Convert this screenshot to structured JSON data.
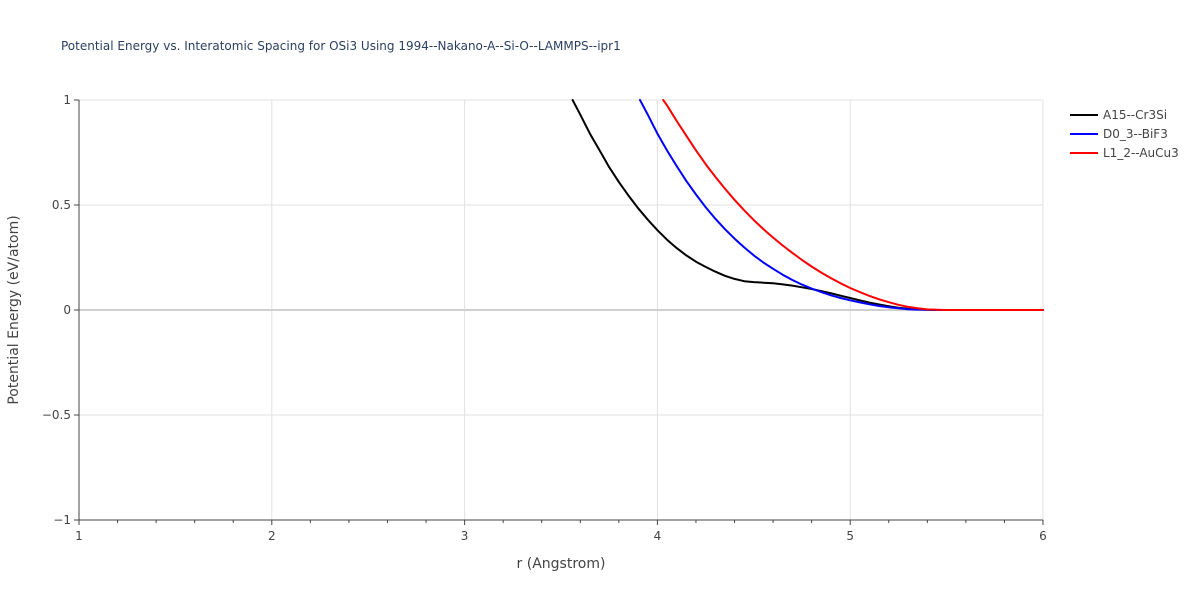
{
  "chart_data": {
    "type": "line",
    "title": "Potential Energy vs. Interatomic Spacing for OSi3 Using 1994--Nakano-A--Si-O--LAMMPS--ipr1",
    "xlabel": "r (Angstrom)",
    "ylabel": "Potential Energy (eV/atom)",
    "xlim": [
      1,
      6
    ],
    "ylim": [
      -1,
      1
    ],
    "xticks": [
      1,
      2,
      3,
      4,
      5,
      6
    ],
    "yticks": [
      -1,
      -0.5,
      0,
      0.5,
      1
    ],
    "xtick_labels": [
      "1",
      "2",
      "3",
      "4",
      "5",
      "6"
    ],
    "ytick_labels": [
      "−1",
      "−0.5",
      "0",
      "0.5",
      "1"
    ],
    "grid": true,
    "legend_position": "right",
    "series": [
      {
        "name": "A15--Cr3Si",
        "color": "#000000",
        "x": [
          3.56,
          3.6,
          3.65,
          3.7,
          3.75,
          3.8,
          3.85,
          3.9,
          3.95,
          4.0,
          4.05,
          4.1,
          4.15,
          4.2,
          4.25,
          4.3,
          4.35,
          4.4,
          4.45,
          4.5,
          4.55,
          4.6,
          4.65,
          4.7,
          4.75,
          4.8,
          4.85,
          4.9,
          4.95,
          5.0,
          5.05,
          5.1,
          5.15,
          5.2,
          5.25,
          5.3,
          5.35,
          5.4,
          5.45,
          5.5,
          5.6,
          5.8,
          6.0
        ],
        "y": [
          1.0,
          0.93,
          0.84,
          0.76,
          0.68,
          0.61,
          0.545,
          0.485,
          0.43,
          0.38,
          0.335,
          0.295,
          0.26,
          0.23,
          0.205,
          0.183,
          0.163,
          0.148,
          0.137,
          0.133,
          0.13,
          0.127,
          0.122,
          0.116,
          0.108,
          0.1,
          0.09,
          0.08,
          0.068,
          0.057,
          0.046,
          0.035,
          0.026,
          0.018,
          0.011,
          0.006,
          0.003,
          0.001,
          0.0,
          0.0,
          0.0,
          0.0,
          0.0
        ]
      },
      {
        "name": "D0_3--BiF3",
        "color": "#0000ff",
        "x": [
          3.91,
          3.95,
          4.0,
          4.05,
          4.1,
          4.15,
          4.2,
          4.25,
          4.3,
          4.35,
          4.4,
          4.45,
          4.5,
          4.55,
          4.6,
          4.65,
          4.7,
          4.75,
          4.8,
          4.85,
          4.9,
          4.95,
          5.0,
          5.05,
          5.1,
          5.15,
          5.2,
          5.25,
          5.3,
          5.35,
          5.4,
          5.45,
          5.5,
          5.6,
          5.8,
          6.0
        ],
        "y": [
          1.0,
          0.93,
          0.84,
          0.76,
          0.685,
          0.615,
          0.55,
          0.49,
          0.435,
          0.385,
          0.34,
          0.298,
          0.26,
          0.226,
          0.196,
          0.168,
          0.143,
          0.121,
          0.102,
          0.085,
          0.07,
          0.057,
          0.046,
          0.036,
          0.027,
          0.019,
          0.013,
          0.008,
          0.004,
          0.002,
          0.001,
          0.0,
          0.0,
          0.0,
          0.0,
          0.0
        ]
      },
      {
        "name": "L1_2--AuCu3",
        "color": "#ff0000",
        "x": [
          4.03,
          4.05,
          4.1,
          4.15,
          4.2,
          4.25,
          4.3,
          4.35,
          4.4,
          4.45,
          4.5,
          4.55,
          4.6,
          4.65,
          4.7,
          4.75,
          4.8,
          4.85,
          4.9,
          4.95,
          5.0,
          5.05,
          5.1,
          5.15,
          5.2,
          5.25,
          5.3,
          5.35,
          5.4,
          5.45,
          5.5,
          5.6,
          5.8,
          6.0
        ],
        "y": [
          1.0,
          0.975,
          0.9,
          0.83,
          0.76,
          0.695,
          0.635,
          0.578,
          0.525,
          0.475,
          0.428,
          0.385,
          0.345,
          0.307,
          0.272,
          0.238,
          0.207,
          0.178,
          0.152,
          0.127,
          0.105,
          0.085,
          0.067,
          0.051,
          0.037,
          0.025,
          0.015,
          0.008,
          0.003,
          0.001,
          0.0,
          0.0,
          0.0,
          0.0
        ]
      }
    ]
  }
}
